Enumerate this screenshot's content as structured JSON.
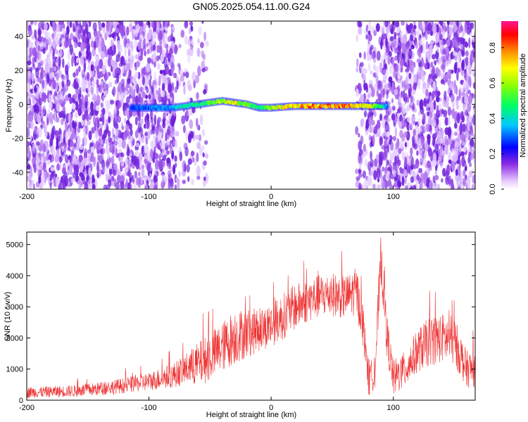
{
  "title": "GN05.2025.054.11.00.G24",
  "colors": {
    "snr_line": "#ee3333",
    "frame": "#000000"
  },
  "chart_data": [
    {
      "type": "heatmap",
      "xlabel": "Height of straight line (km)",
      "ylabel": "Frequency (Hz)",
      "xlim": [
        -200,
        167
      ],
      "ylim": [
        -50,
        49
      ],
      "x_ticks": [
        -200,
        -100,
        0,
        100
      ],
      "x_tick_labels": [
        "-200",
        "-100",
        "0",
        "100"
      ],
      "y_ticks": [
        -40,
        -20,
        0,
        20,
        40
      ],
      "y_tick_labels": [
        "-40",
        "-20",
        "0",
        "20",
        "40"
      ],
      "colorbar": {
        "label": "Normalized spectral amplitude",
        "range": [
          0,
          0.95
        ],
        "ticks": [
          0,
          0.2,
          0.4,
          0.6,
          0.8
        ],
        "tick_labels": [
          "0.0",
          "0.2",
          "0.4",
          "0.6",
          "0.8"
        ],
        "colormap": "rainbow"
      },
      "noise_regions": [
        {
          "x": [
            -200,
            -78
          ],
          "density": 1.0
        },
        {
          "x": [
            -78,
            -52
          ],
          "density": 0.3
        },
        {
          "x": [
            70,
            92
          ],
          "density": 0.6
        },
        {
          "x": [
            92,
            167
          ],
          "density": 1.0
        }
      ],
      "signal_ridge": {
        "x": [
          -115,
          -100,
          -80,
          -70,
          -60,
          -50,
          -40,
          -30,
          -20,
          -10,
          0,
          20,
          40,
          60,
          80,
          95
        ],
        "frequency_hz": [
          -2,
          -2,
          -2,
          -1,
          0,
          1,
          2,
          1,
          0,
          -2,
          -2,
          -1,
          -1,
          -1,
          -1,
          -1
        ],
        "amplitude": [
          0.3,
          0.35,
          0.4,
          0.5,
          0.5,
          0.6,
          0.7,
          0.8,
          0.6,
          0.5,
          0.7,
          0.85,
          0.9,
          0.9,
          0.8,
          0.4
        ]
      }
    },
    {
      "type": "line",
      "xlabel": "Height of straight line (km)",
      "ylabel": "SNR (10 * v/v)",
      "xlim": [
        -200,
        167
      ],
      "ylim": [
        0,
        5400
      ],
      "x_ticks": [
        -200,
        -100,
        0,
        100
      ],
      "x_tick_labels": [
        "-200",
        "-100",
        "0",
        "100"
      ],
      "y_ticks": [
        0,
        1000,
        2000,
        3000,
        4000,
        5000
      ],
      "y_tick_labels": [
        "0",
        "1000",
        "2000",
        "3000",
        "4000",
        "5000"
      ],
      "series": [
        {
          "x": [
            -200,
            -180,
            -160,
            -140,
            -120,
            -100,
            -90,
            -80,
            -70,
            -60,
            -50,
            -40,
            -30,
            -20,
            -10,
            0,
            10,
            20,
            30,
            40,
            50,
            60,
            65,
            70,
            75,
            80,
            85,
            90,
            95,
            100,
            110,
            120,
            130,
            140,
            150,
            160,
            167
          ],
          "y": [
            250,
            270,
            300,
            370,
            470,
            600,
            700,
            800,
            1000,
            1150,
            1400,
            1700,
            2050,
            2150,
            2250,
            2400,
            2700,
            3000,
            3200,
            3350,
            3400,
            3300,
            3400,
            3500,
            2500,
            600,
            1000,
            4600,
            2000,
            700,
            1000,
            1600,
            1900,
            2000,
            1900,
            1000,
            1000
          ],
          "spread": [
            180,
            180,
            200,
            220,
            250,
            300,
            350,
            400,
            500,
            700,
            800,
            800,
            900,
            800,
            700,
            700,
            750,
            750,
            700,
            700,
            700,
            700,
            700,
            800,
            700,
            500,
            600,
            900,
            700,
            600,
            600,
            700,
            800,
            800,
            800,
            600,
            600
          ]
        }
      ]
    }
  ]
}
